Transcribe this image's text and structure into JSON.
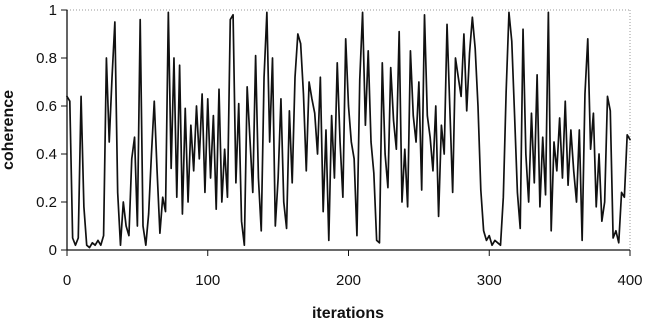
{
  "chart_data": {
    "type": "line",
    "title": "",
    "xlabel": "iterations",
    "ylabel": "coherence",
    "xlim": [
      0,
      400
    ],
    "ylim": [
      0,
      1
    ],
    "xticks": [
      "0",
      "100",
      "200",
      "300",
      "400"
    ],
    "yticks": [
      "0",
      "0.2",
      "0.4",
      "0.6",
      "0.8",
      "1"
    ],
    "grid": false,
    "legend": "none",
    "line_color": "#111111",
    "frame_color": "#999999",
    "series": [
      {
        "points": [
          [
            0,
            0.64
          ],
          [
            2,
            0.62
          ],
          [
            4,
            0.05
          ],
          [
            6,
            0.02
          ],
          [
            8,
            0.05
          ],
          [
            10,
            0.64
          ],
          [
            12,
            0.18
          ],
          [
            14,
            0.02
          ],
          [
            16,
            0.01
          ],
          [
            18,
            0.03
          ],
          [
            20,
            0.02
          ],
          [
            22,
            0.04
          ],
          [
            24,
            0.02
          ],
          [
            26,
            0.06
          ],
          [
            28,
            0.8
          ],
          [
            30,
            0.45
          ],
          [
            32,
            0.72
          ],
          [
            34,
            0.95
          ],
          [
            36,
            0.24
          ],
          [
            38,
            0.02
          ],
          [
            40,
            0.2
          ],
          [
            42,
            0.1
          ],
          [
            44,
            0.06
          ],
          [
            46,
            0.38
          ],
          [
            48,
            0.47
          ],
          [
            50,
            0.1
          ],
          [
            52,
            0.96
          ],
          [
            54,
            0.1
          ],
          [
            56,
            0.02
          ],
          [
            58,
            0.15
          ],
          [
            60,
            0.4
          ],
          [
            62,
            0.62
          ],
          [
            64,
            0.33
          ],
          [
            66,
            0.07
          ],
          [
            68,
            0.22
          ],
          [
            70,
            0.16
          ],
          [
            72,
            0.99
          ],
          [
            74,
            0.34
          ],
          [
            76,
            0.8
          ],
          [
            78,
            0.22
          ],
          [
            80,
            0.77
          ],
          [
            82,
            0.15
          ],
          [
            84,
            0.59
          ],
          [
            86,
            0.2
          ],
          [
            88,
            0.52
          ],
          [
            90,
            0.33
          ],
          [
            92,
            0.6
          ],
          [
            94,
            0.38
          ],
          [
            96,
            0.65
          ],
          [
            98,
            0.24
          ],
          [
            100,
            0.63
          ],
          [
            102,
            0.3
          ],
          [
            104,
            0.56
          ],
          [
            106,
            0.17
          ],
          [
            108,
            0.67
          ],
          [
            110,
            0.2
          ],
          [
            112,
            0.42
          ],
          [
            114,
            0.22
          ],
          [
            116,
            0.96
          ],
          [
            118,
            0.98
          ],
          [
            120,
            0.28
          ],
          [
            122,
            0.61
          ],
          [
            124,
            0.12
          ],
          [
            126,
            0.02
          ],
          [
            128,
            0.68
          ],
          [
            130,
            0.46
          ],
          [
            132,
            0.24
          ],
          [
            134,
            0.81
          ],
          [
            136,
            0.3
          ],
          [
            138,
            0.08
          ],
          [
            140,
            0.72
          ],
          [
            142,
            0.99
          ],
          [
            144,
            0.45
          ],
          [
            146,
            0.8
          ],
          [
            148,
            0.1
          ],
          [
            150,
            0.3
          ],
          [
            152,
            0.63
          ],
          [
            154,
            0.2
          ],
          [
            156,
            0.09
          ],
          [
            158,
            0.58
          ],
          [
            160,
            0.28
          ],
          [
            162,
            0.72
          ],
          [
            164,
            0.9
          ],
          [
            166,
            0.86
          ],
          [
            168,
            0.65
          ],
          [
            170,
            0.33
          ],
          [
            172,
            0.7
          ],
          [
            174,
            0.63
          ],
          [
            176,
            0.57
          ],
          [
            178,
            0.4
          ],
          [
            180,
            0.72
          ],
          [
            182,
            0.16
          ],
          [
            184,
            0.5
          ],
          [
            186,
            0.04
          ],
          [
            188,
            0.56
          ],
          [
            190,
            0.3
          ],
          [
            192,
            0.78
          ],
          [
            194,
            0.45
          ],
          [
            196,
            0.22
          ],
          [
            198,
            0.88
          ],
          [
            200,
            0.6
          ],
          [
            202,
            0.45
          ],
          [
            204,
            0.38
          ],
          [
            206,
            0.06
          ],
          [
            208,
            0.71
          ],
          [
            210,
            0.99
          ],
          [
            212,
            0.52
          ],
          [
            214,
            0.83
          ],
          [
            216,
            0.45
          ],
          [
            218,
            0.32
          ],
          [
            220,
            0.04
          ],
          [
            222,
            0.03
          ],
          [
            224,
            0.78
          ],
          [
            226,
            0.4
          ],
          [
            228,
            0.26
          ],
          [
            230,
            0.76
          ],
          [
            232,
            0.54
          ],
          [
            234,
            0.42
          ],
          [
            236,
            0.91
          ],
          [
            238,
            0.2
          ],
          [
            240,
            0.42
          ],
          [
            242,
            0.18
          ],
          [
            244,
            0.83
          ],
          [
            246,
            0.56
          ],
          [
            248,
            0.45
          ],
          [
            250,
            0.7
          ],
          [
            252,
            0.25
          ],
          [
            254,
            0.98
          ],
          [
            256,
            0.56
          ],
          [
            258,
            0.47
          ],
          [
            260,
            0.33
          ],
          [
            262,
            0.6
          ],
          [
            264,
            0.14
          ],
          [
            266,
            0.52
          ],
          [
            268,
            0.4
          ],
          [
            270,
            0.94
          ],
          [
            272,
            0.59
          ],
          [
            274,
            0.24
          ],
          [
            276,
            0.8
          ],
          [
            278,
            0.72
          ],
          [
            280,
            0.64
          ],
          [
            282,
            0.9
          ],
          [
            284,
            0.58
          ],
          [
            286,
            0.82
          ],
          [
            288,
            0.97
          ],
          [
            290,
            0.84
          ],
          [
            292,
            0.6
          ],
          [
            294,
            0.25
          ],
          [
            296,
            0.08
          ],
          [
            298,
            0.04
          ],
          [
            300,
            0.06
          ],
          [
            302,
            0.02
          ],
          [
            304,
            0.04
          ],
          [
            306,
            0.03
          ],
          [
            308,
            0.02
          ],
          [
            310,
            0.22
          ],
          [
            312,
            0.66
          ],
          [
            314,
            0.99
          ],
          [
            316,
            0.87
          ],
          [
            318,
            0.56
          ],
          [
            320,
            0.24
          ],
          [
            322,
            0.09
          ],
          [
            324,
            0.92
          ],
          [
            326,
            0.4
          ],
          [
            328,
            0.2
          ],
          [
            330,
            0.57
          ],
          [
            332,
            0.28
          ],
          [
            334,
            0.73
          ],
          [
            336,
            0.18
          ],
          [
            338,
            0.47
          ],
          [
            340,
            0.23
          ],
          [
            342,
            0.99
          ],
          [
            344,
            0.08
          ],
          [
            346,
            0.45
          ],
          [
            348,
            0.33
          ],
          [
            350,
            0.55
          ],
          [
            352,
            0.3
          ],
          [
            354,
            0.62
          ],
          [
            356,
            0.27
          ],
          [
            358,
            0.5
          ],
          [
            360,
            0.33
          ],
          [
            362,
            0.2
          ],
          [
            364,
            0.5
          ],
          [
            366,
            0.04
          ],
          [
            368,
            0.65
          ],
          [
            370,
            0.88
          ],
          [
            372,
            0.42
          ],
          [
            374,
            0.57
          ],
          [
            376,
            0.18
          ],
          [
            378,
            0.4
          ],
          [
            380,
            0.12
          ],
          [
            382,
            0.2
          ],
          [
            384,
            0.64
          ],
          [
            386,
            0.58
          ],
          [
            388,
            0.05
          ],
          [
            390,
            0.08
          ],
          [
            392,
            0.03
          ],
          [
            394,
            0.24
          ],
          [
            396,
            0.22
          ],
          [
            398,
            0.48
          ],
          [
            400,
            0.46
          ]
        ]
      }
    ]
  }
}
